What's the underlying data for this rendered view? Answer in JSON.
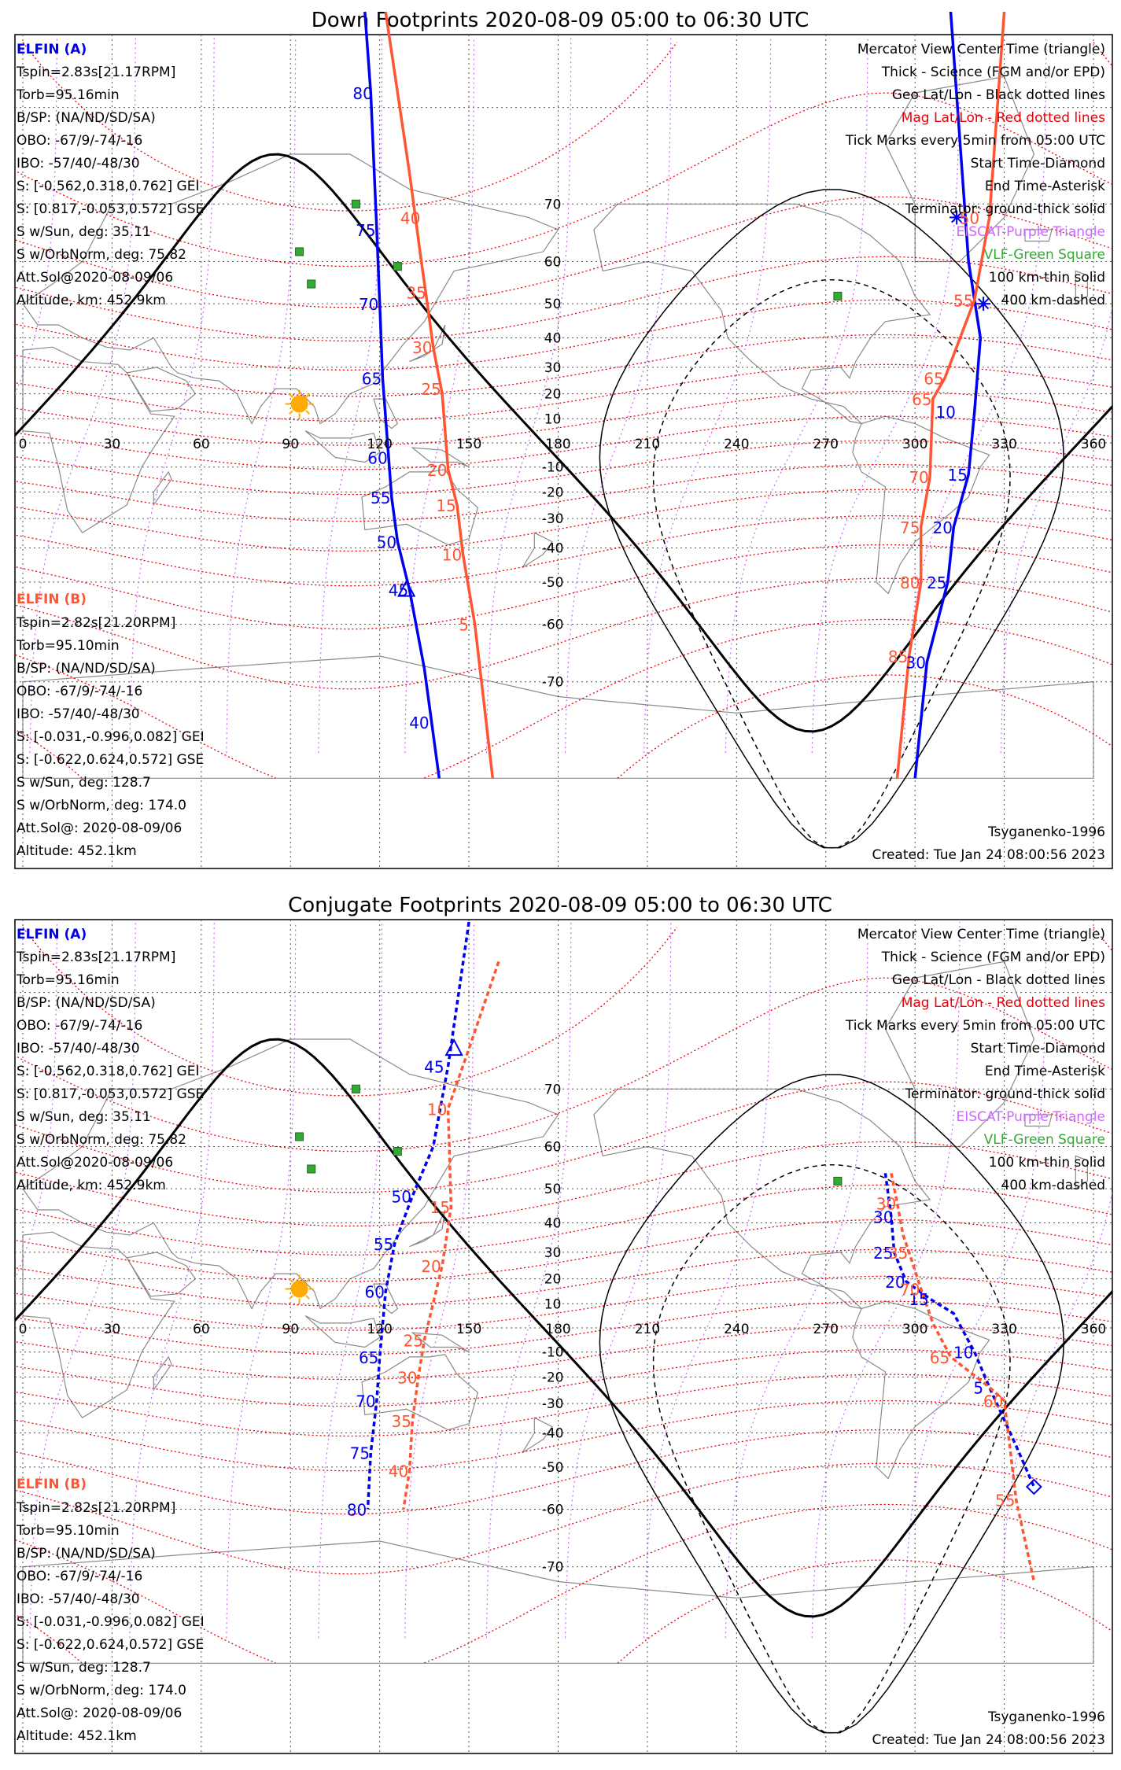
{
  "panels": [
    {
      "title": "Down Footprints 2020-08-09 05:00 to 06:30 UTC",
      "mode": "down",
      "info": {
        "a_header": "ELFIN (A)",
        "a_lines": [
          "Tspin=2.83s[21.17RPM]",
          "Torb=95.16min",
          "B/SP: (NA/ND/SD/SA)",
          "OBO: -67/9/-74/-16",
          "IBO: -57/40/-48/30",
          "S: [-0.562,0.318,0.762] GEI",
          "S: [0.817,-0.053,0.572] GSE",
          "S w/Sun, deg: 35.11",
          "S w/OrbNorm, deg: 75.82",
          "Att.Sol@2020-08-09/06",
          "Altitude, km: 452.9km"
        ],
        "b_header": "ELFIN (B)",
        "b_lines": [
          "Tspin=2.82s[21.20RPM]",
          "Torb=95.10min",
          "B/SP: (NA/ND/SD/SA)",
          "OBO: -67/9/-74/-16",
          "IBO: -57/40/-48/30",
          "S: [-0.031,-0.996,0.082] GEI",
          "S: [-0.622,0.624,0.572] GSE",
          "S w/Sun, deg: 128.7",
          "S w/OrbNorm, deg: 174.0",
          "Att.Sol@: 2020-08-09/06",
          "Altitude: 452.1km"
        ]
      },
      "legend": [
        {
          "text": "Mercator View Center Time (triangle)",
          "color": "#000000"
        },
        {
          "text": "Thick - Science (FGM and/or EPD)",
          "color": "#000000"
        },
        {
          "text": "Geo Lat/Lon - Black dotted lines",
          "color": "#000000"
        },
        {
          "text": "Mag Lat/Lon - Red dotted lines",
          "color": "#e8000b"
        },
        {
          "text": "Tick Marks every 5min from 05:00 UTC",
          "color": "#000000"
        },
        {
          "text": "Start Time-Diamond",
          "color": "#000000"
        },
        {
          "text": "End Time-Asterisk",
          "color": "#000000"
        },
        {
          "text": "Terminator: ground-thick solid",
          "color": "#000000"
        },
        {
          "text": "EISCAT-Purple Triangle",
          "color": "#cc66ff"
        },
        {
          "text": "VLF-Green Square",
          "color": "#33aa33"
        },
        {
          "text": "100 km-thin solid",
          "color": "#000000"
        },
        {
          "text": "400 km-dashed",
          "color": "#000000"
        }
      ],
      "footer_left": "",
      "footer_right": [
        "Tsyganenko-1996",
        "Created: Tue Jan 24 08:00:56 2023"
      ],
      "a_ticks": [
        {
          "label": "80",
          "lon": 118,
          "lat": 81
        },
        {
          "label": "75",
          "lon": 119,
          "lat": 66
        },
        {
          "label": "70",
          "lon": 120,
          "lat": 50
        },
        {
          "label": "65",
          "lon": 121,
          "lat": 26
        },
        {
          "label": "60",
          "lon": 123,
          "lat": -6
        },
        {
          "label": "55",
          "lon": 124,
          "lat": -22
        },
        {
          "label": "50",
          "lon": 126,
          "lat": -38
        },
        {
          "label": "45",
          "lon": 130,
          "lat": -52
        },
        {
          "label": "40",
          "lon": 137,
          "lat": -75
        },
        {
          "label": "10",
          "lon": 314,
          "lat": 13
        },
        {
          "label": "15",
          "lon": 318,
          "lat": -13
        },
        {
          "label": "20",
          "lon": 313,
          "lat": -33
        },
        {
          "label": "25",
          "lon": 311,
          "lat": -50
        },
        {
          "label": "30",
          "lon": 304,
          "lat": -67
        }
      ],
      "b_ticks": [
        {
          "label": "40",
          "lon": 134,
          "lat": 68
        },
        {
          "label": "35",
          "lon": 136,
          "lat": 53
        },
        {
          "label": "30",
          "lon": 138,
          "lat": 37
        },
        {
          "label": "25",
          "lon": 141,
          "lat": 22
        },
        {
          "label": "20",
          "lon": 143,
          "lat": -11
        },
        {
          "label": "15",
          "lon": 146,
          "lat": -25
        },
        {
          "label": "10",
          "lon": 148,
          "lat": -42
        },
        {
          "label": "5",
          "lon": 152,
          "lat": -60
        },
        {
          "label": "50",
          "lon": 322,
          "lat": 68
        },
        {
          "label": "55",
          "lon": 320,
          "lat": 51
        },
        {
          "label": "65",
          "lon": 310,
          "lat": 26
        },
        {
          "label": "65",
          "lon": 306,
          "lat": 18
        },
        {
          "label": "70",
          "lon": 305,
          "lat": -14
        },
        {
          "label": "75",
          "lon": 302,
          "lat": -33
        },
        {
          "label": "80",
          "lon": 302,
          "lat": -50
        },
        {
          "label": "85",
          "lon": 298,
          "lat": -66
        }
      ]
    },
    {
      "title": "Conjugate Footprints 2020-08-09 05:00 to 06:30 UTC",
      "mode": "conjugate",
      "info": {
        "a_header": "ELFIN (A)",
        "a_lines": [
          "Tspin=2.83s[21.17RPM]",
          "Torb=95.16min",
          "B/SP: (NA/ND/SD/SA)",
          "OBO: -67/9/-74/-16",
          "IBO: -57/40/-48/30",
          "S: [-0.562,0.318,0.762] GEI",
          "S: [0.817,-0.053,0.572] GSE",
          "S w/Sun, deg: 35.11",
          "S w/OrbNorm, deg: 75.82",
          "Att.Sol@2020-08-09/06",
          "Altitude, km: 452.9km"
        ],
        "b_header": "ELFIN (B)",
        "b_lines": [
          "Tspin=2.82s[21.20RPM]",
          "Torb=95.10min",
          "B/SP: (NA/ND/SD/SA)",
          "OBO: -67/9/-74/-16",
          "IBO: -57/40/-48/30",
          "S: [-0.031,-0.996,0.082] GEI",
          "S: [-0.622,0.624,0.572] GSE",
          "S w/Sun, deg: 128.7",
          "S w/OrbNorm, deg: 174.0",
          "Att.Sol@: 2020-08-09/06",
          "Altitude: 452.1km"
        ]
      },
      "legend": [
        {
          "text": "Mercator View Center Time (triangle)",
          "color": "#000000"
        },
        {
          "text": "Thick - Science (FGM and/or EPD)",
          "color": "#000000"
        },
        {
          "text": "Geo Lat/Lon - Black dotted lines",
          "color": "#000000"
        },
        {
          "text": "Mag Lat/Lon - Red dotted lines",
          "color": "#e8000b"
        },
        {
          "text": "Tick Marks every 5min from 05:00 UTC",
          "color": "#000000"
        },
        {
          "text": "Start Time-Diamond",
          "color": "#000000"
        },
        {
          "text": "End Time-Asterisk",
          "color": "#000000"
        },
        {
          "text": "Terminator: ground-thick solid",
          "color": "#000000"
        },
        {
          "text": "EISCAT-Purple Triangle",
          "color": "#cc66ff"
        },
        {
          "text": "VLF-Green Square",
          "color": "#33aa33"
        },
        {
          "text": "100 km-thin solid",
          "color": "#000000"
        },
        {
          "text": "400 km-dashed",
          "color": "#000000"
        }
      ],
      "footer_left": "",
      "footer_right": [
        "Tsyganenko-1996",
        "Created: Tue Jan 24 08:00:56 2023"
      ],
      "a_ticks": [
        {
          "label": "45",
          "lon": 142,
          "lat": 73
        },
        {
          "label": "50",
          "lon": 131,
          "lat": 48
        },
        {
          "label": "55",
          "lon": 125,
          "lat": 33
        },
        {
          "label": "60",
          "lon": 122,
          "lat": 15
        },
        {
          "label": "65",
          "lon": 120,
          "lat": -12
        },
        {
          "label": "70",
          "lon": 119,
          "lat": -29
        },
        {
          "label": "75",
          "lon": 117,
          "lat": -46
        },
        {
          "label": "80",
          "lon": 116,
          "lat": -60
        },
        {
          "label": "30",
          "lon": 293,
          "lat": 42
        },
        {
          "label": "25",
          "lon": 293,
          "lat": 30
        },
        {
          "label": "20",
          "lon": 297,
          "lat": 19
        },
        {
          "label": "15",
          "lon": 305,
          "lat": 12
        },
        {
          "label": "10",
          "lon": 320,
          "lat": -10
        },
        {
          "label": "5",
          "lon": 325,
          "lat": -24
        }
      ],
      "b_ticks": [
        {
          "label": "10",
          "lon": 143,
          "lat": 67
        },
        {
          "label": "15",
          "lon": 144,
          "lat": 45
        },
        {
          "label": "20",
          "lon": 141,
          "lat": 25
        },
        {
          "label": "25",
          "lon": 135,
          "lat": -5
        },
        {
          "label": "30",
          "lon": 133,
          "lat": -20
        },
        {
          "label": "35",
          "lon": 131,
          "lat": -36
        },
        {
          "label": "40",
          "lon": 130,
          "lat": -51
        },
        {
          "label": "30",
          "lon": 294,
          "lat": 46
        },
        {
          "label": "35",
          "lon": 298,
          "lat": 30
        },
        {
          "label": "70",
          "lon": 302,
          "lat": 16
        },
        {
          "label": "65",
          "lon": 312,
          "lat": -12
        },
        {
          "label": "60",
          "lon": 330,
          "lat": -29
        },
        {
          "label": "55",
          "lon": 334,
          "lat": -58
        }
      ]
    }
  ],
  "axis": {
    "lon_ticks": [
      "0",
      "30",
      "60",
      "90",
      "120",
      "150",
      "180",
      "210",
      "240",
      "270",
      "300",
      "330",
      "360"
    ],
    "lat_ticks": [
      "70",
      "60",
      "50",
      "40",
      "30",
      "20",
      "10",
      "-10",
      "-20",
      "-30",
      "-40",
      "-50",
      "-60",
      "-70"
    ]
  },
  "colors": {
    "elfin_a": "#0000ee",
    "elfin_b": "#ff5533",
    "mag_grid": "#e8000b",
    "geo_grid": "#000000",
    "eiscat": "#cc66ff",
    "vlf": "#33aa33",
    "sun": "#ffaa00"
  },
  "icons": {
    "sun": "sun-icon",
    "vlf": "vlf-square-icon",
    "view_center": "triangle-icon",
    "start": "diamond-icon",
    "end": "asterisk-icon"
  }
}
